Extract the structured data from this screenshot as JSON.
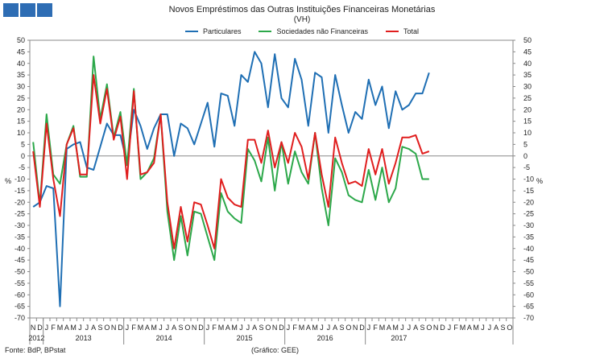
{
  "header": {
    "title": "Novos Empréstimos das Outras Instituições Financeiras Monetárias",
    "subtitle": "(VH)"
  },
  "footer": {
    "source": "Fonte: BdP, BPstat",
    "chart_credit": "(Gráfico: GEE)"
  },
  "chart_data": {
    "type": "line",
    "title": "Novos Empréstimos das Outras Instituições Financeiras Monetárias",
    "subtitle": "(VH)",
    "ylabel": "%",
    "ylabel_right": "%",
    "ylim": [
      -70,
      50
    ],
    "yticks": [
      50,
      45,
      40,
      35,
      30,
      25,
      20,
      15,
      10,
      5,
      0,
      -5,
      -10,
      -15,
      -20,
      -25,
      -30,
      -35,
      -40,
      -45,
      -50,
      -55,
      -60,
      -65,
      -70
    ],
    "grid": false,
    "legend_position": "top-center",
    "month_labels": [
      "N",
      "D",
      "J",
      "F",
      "M",
      "A",
      "M",
      "J",
      "J",
      "A",
      "S",
      "O",
      "N",
      "D",
      "J",
      "F",
      "M",
      "A",
      "M",
      "J",
      "J",
      "A",
      "S",
      "O",
      "N",
      "D",
      "J",
      "F",
      "M",
      "A",
      "M",
      "J",
      "J",
      "A",
      "S",
      "O",
      "N",
      "D",
      "J",
      "F",
      "M",
      "A",
      "M",
      "J",
      "J",
      "A",
      "S",
      "O",
      "N",
      "D",
      "J",
      "F",
      "M",
      "A",
      "M",
      "J",
      "J",
      "A",
      "S",
      "O",
      "N",
      "D",
      "J",
      "F",
      "M",
      "A",
      "M",
      "J",
      "J",
      "A",
      "S",
      "O"
    ],
    "year_labels": [
      {
        "label": "2012",
        "start": 0,
        "end": 1
      },
      {
        "label": "2013",
        "start": 2,
        "end": 13
      },
      {
        "label": "2014",
        "start": 14,
        "end": 25
      },
      {
        "label": "2015",
        "start": 26,
        "end": 37
      },
      {
        "label": "2016",
        "start": 38,
        "end": 49
      },
      {
        "label": "2017",
        "start": 50,
        "end": 59
      }
    ],
    "series": [
      {
        "name": "Particulares",
        "color": "#1f6fb4",
        "values": [
          -22,
          -20,
          -13,
          -14,
          -65,
          3,
          5,
          6,
          -5,
          -6,
          4,
          14,
          9,
          9,
          -3,
          20,
          13,
          3,
          12,
          18,
          18,
          0,
          14,
          12,
          5,
          14,
          23,
          4,
          27,
          26,
          13,
          35,
          32,
          45,
          40,
          21,
          44,
          25,
          21,
          42,
          33,
          13,
          36,
          34,
          10,
          35,
          22,
          10,
          19,
          16,
          33,
          22,
          30,
          12,
          28,
          20,
          22,
          27,
          27,
          36
        ]
      },
      {
        "name": "Sociedades não Financeiras",
        "color": "#2ca84a",
        "values": [
          6,
          -21,
          18,
          -8,
          -12,
          5,
          13,
          -9,
          -9,
          43,
          16,
          31,
          8,
          19,
          -4,
          29,
          -10,
          -7,
          -1,
          18,
          -24,
          -45,
          -26,
          -43,
          -24,
          -25,
          -35,
          -45,
          -16,
          -24,
          -27,
          -29,
          3,
          -2,
          -11,
          8,
          -15,
          6,
          -12,
          2,
          -7,
          -12,
          10,
          -14,
          -30,
          -1,
          -7,
          -17,
          -19,
          -20,
          -6,
          -19,
          -5,
          -20,
          -14,
          4,
          3,
          1,
          -10,
          -10
        ]
      },
      {
        "name": "Total",
        "color": "#e01e1e",
        "values": [
          2,
          -22,
          14,
          -10,
          -26,
          5,
          12,
          -8,
          -8,
          35,
          14,
          29,
          7,
          17,
          -10,
          28,
          -8,
          -7,
          -3,
          18,
          -20,
          -40,
          -22,
          -37,
          -20,
          -21,
          -30,
          -40,
          -10,
          -18,
          -21,
          -22,
          7,
          7,
          -3,
          11,
          -5,
          6,
          -3,
          10,
          4,
          -10,
          10,
          -8,
          -22,
          8,
          -3,
          -12,
          -11,
          -13,
          3,
          -8,
          3,
          -12,
          -3,
          8,
          8,
          9,
          1,
          2
        ]
      }
    ]
  }
}
